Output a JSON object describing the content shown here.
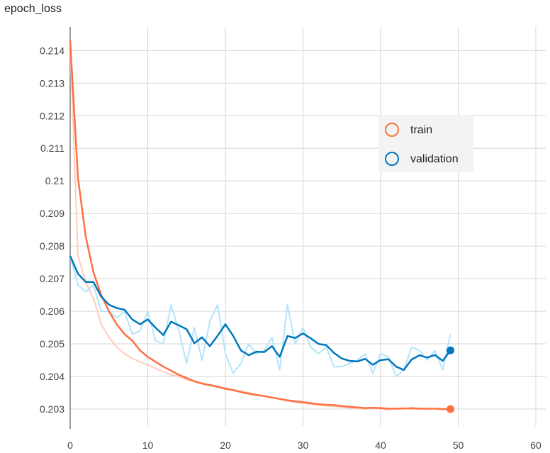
{
  "chart_data": {
    "type": "line",
    "title": "epoch_loss",
    "xlabel": "",
    "ylabel": "",
    "xlim": [
      0,
      60
    ],
    "ylim": [
      0.2025,
      0.2145
    ],
    "x_ticks": [
      0,
      10,
      20,
      30,
      40,
      50,
      60
    ],
    "y_ticks": [
      0.203,
      0.204,
      0.205,
      0.206,
      0.207,
      0.208,
      0.209,
      0.21,
      0.211,
      0.212,
      0.213,
      0.214
    ],
    "x_tick_labels": [
      "0",
      "10",
      "20",
      "30",
      "40",
      "50",
      "60"
    ],
    "y_tick_labels": [
      "0.203",
      "0.204",
      "0.205",
      "0.206",
      "0.207",
      "0.208",
      "0.209",
      "0.21",
      "0.211",
      "0.212",
      "0.213",
      "0.214"
    ],
    "grid": true,
    "legend_position": "right",
    "series": [
      {
        "name": "train",
        "color": "#ff7043",
        "raw_color": "#ffccbc",
        "x": [
          0,
          1,
          2,
          3,
          4,
          5,
          6,
          7,
          8,
          9,
          10,
          11,
          12,
          13,
          14,
          15,
          16,
          17,
          18,
          19,
          20,
          21,
          22,
          23,
          24,
          25,
          26,
          27,
          28,
          29,
          30,
          31,
          32,
          33,
          34,
          35,
          36,
          37,
          38,
          39,
          40,
          41,
          42,
          43,
          44,
          45,
          46,
          47,
          48,
          49
        ],
        "raw": [
          0.2143,
          0.2077,
          0.2069,
          0.2064,
          0.2056,
          0.2052,
          0.2049,
          0.2047,
          0.20455,
          0.20445,
          0.20435,
          0.20425,
          0.20415,
          0.20405,
          0.204,
          0.2039,
          0.20385,
          0.2038,
          0.20375,
          0.2037,
          0.20365,
          0.2036,
          0.20355,
          0.2035,
          0.20345,
          0.2034,
          0.20335,
          0.2033,
          0.20325,
          0.2032,
          0.20318,
          0.20315,
          0.20312,
          0.2031,
          0.20308,
          0.20306,
          0.20304,
          0.20302,
          0.203,
          0.20305,
          0.203,
          0.20298,
          0.20302,
          0.203,
          0.20305,
          0.20302,
          0.203,
          0.20302,
          0.20298,
          0.203
        ],
        "smoothed": [
          0.2143,
          0.2101,
          0.2083,
          0.2072,
          0.2065,
          0.206,
          0.2056,
          0.2053,
          0.2051,
          0.2048,
          0.2046,
          0.20445,
          0.2043,
          0.20418,
          0.20405,
          0.20395,
          0.20385,
          0.20378,
          0.20373,
          0.20368,
          0.20362,
          0.20358,
          0.20352,
          0.20347,
          0.20343,
          0.2034,
          0.20335,
          0.20331,
          0.20327,
          0.20324,
          0.20321,
          0.20318,
          0.20315,
          0.20313,
          0.20312,
          0.20309,
          0.20307,
          0.20305,
          0.20303,
          0.20304,
          0.20303,
          0.20301,
          0.20301,
          0.20302,
          0.20302,
          0.20301,
          0.20301,
          0.20301,
          0.203,
          0.203
        ]
      },
      {
        "name": "validation",
        "color": "#0277bd",
        "raw_color": "#b3e5fc",
        "x": [
          0,
          1,
          2,
          3,
          4,
          5,
          6,
          7,
          8,
          9,
          10,
          11,
          12,
          13,
          14,
          15,
          16,
          17,
          18,
          19,
          20,
          21,
          22,
          23,
          24,
          25,
          26,
          27,
          28,
          29,
          30,
          31,
          32,
          33,
          34,
          35,
          36,
          37,
          38,
          39,
          40,
          41,
          42,
          43,
          44,
          45,
          46,
          47,
          48,
          49
        ],
        "raw": [
          0.2077,
          0.2068,
          0.2066,
          0.2068,
          0.206,
          0.206,
          0.2058,
          0.206,
          0.2053,
          0.2054,
          0.206,
          0.2051,
          0.205,
          0.2062,
          0.2054,
          0.2044,
          0.2055,
          0.2045,
          0.2057,
          0.2062,
          0.2047,
          0.2041,
          0.2044,
          0.205,
          0.2047,
          0.2048,
          0.2052,
          0.2042,
          0.2062,
          0.205,
          0.2055,
          0.2049,
          0.2047,
          0.2049,
          0.2043,
          0.2043,
          0.2044,
          0.2045,
          0.2047,
          0.2041,
          0.2047,
          0.2046,
          0.204,
          0.2042,
          0.2049,
          0.2048,
          0.2045,
          0.2048,
          0.2042,
          0.2053
        ],
        "smoothed": [
          0.2077,
          0.20715,
          0.2069,
          0.2069,
          0.20645,
          0.2062,
          0.2061,
          0.20605,
          0.20575,
          0.2056,
          0.20575,
          0.2055,
          0.20527,
          0.20568,
          0.20557,
          0.20545,
          0.20502,
          0.2052,
          0.20493,
          0.20525,
          0.2056,
          0.20525,
          0.2048,
          0.20465,
          0.20476,
          0.20475,
          0.20493,
          0.2046,
          0.20524,
          0.20518,
          0.20532,
          0.20517,
          0.205,
          0.20496,
          0.20472,
          0.20455,
          0.20448,
          0.20446,
          0.20454,
          0.20436,
          0.2045,
          0.20453,
          0.2043,
          0.2042,
          0.20452,
          0.20465,
          0.20458,
          0.20466,
          0.20448,
          0.2048
        ]
      }
    ]
  }
}
